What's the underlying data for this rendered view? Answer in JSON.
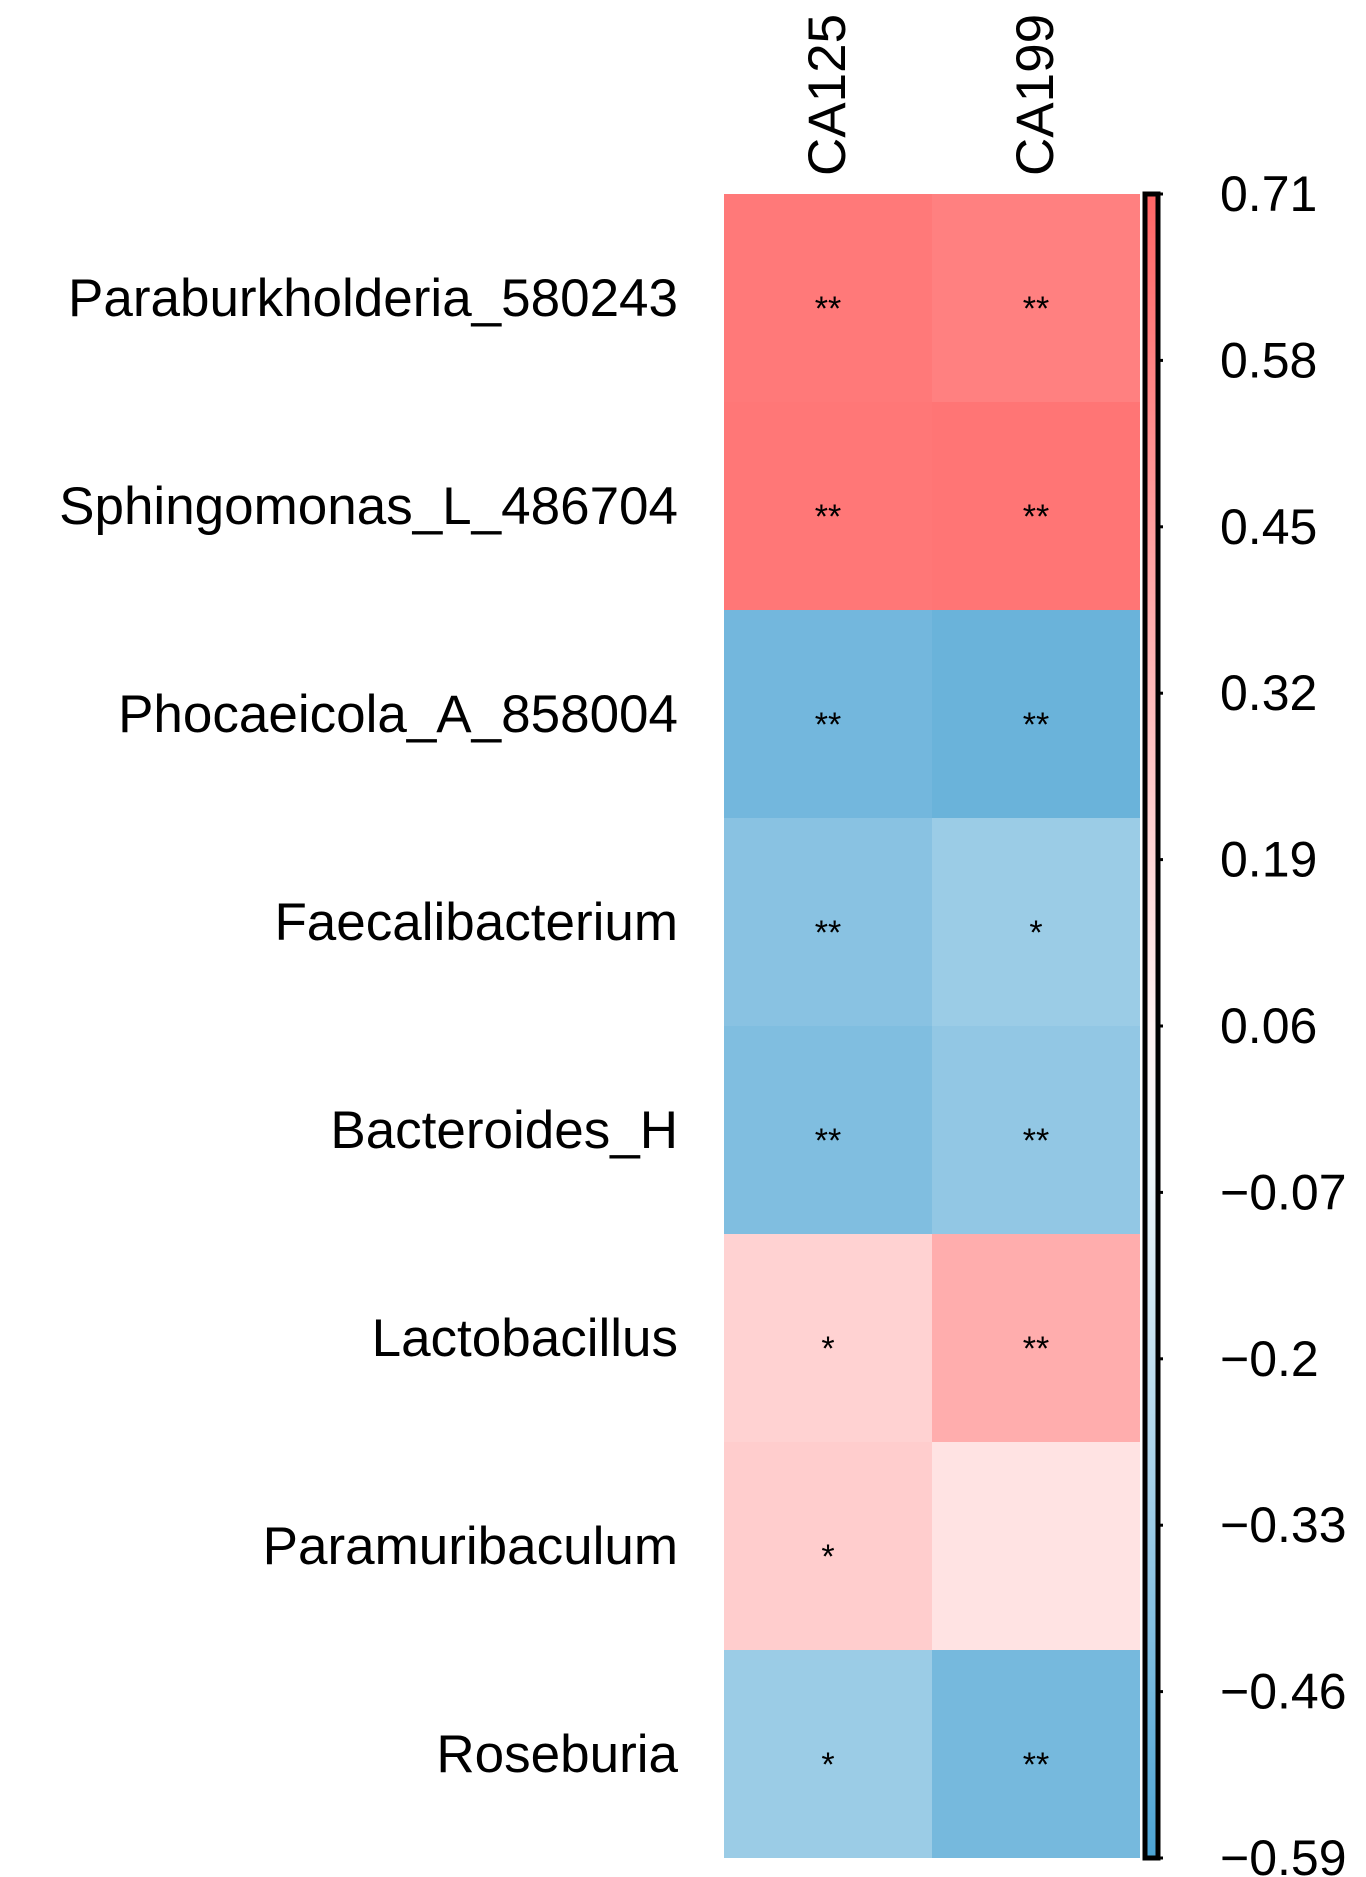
{
  "chart_data": {
    "type": "heatmap",
    "title": "",
    "columns": [
      "CA125",
      "CA199"
    ],
    "rows": [
      "Paraburkholderia_580243",
      "Sphingomonas_L_486704",
      "Phocaeicola_A_858004",
      "Faecalibacterium",
      "Bacteroides_H",
      "Lactobacillus",
      "Paramuribaculum",
      "Roseburia"
    ],
    "values": [
      [
        0.62,
        0.59
      ],
      [
        0.63,
        0.64
      ],
      [
        -0.46,
        -0.49
      ],
      [
        -0.39,
        -0.33
      ],
      [
        -0.42,
        -0.36
      ],
      [
        0.21,
        0.38
      ],
      [
        0.23,
        0.13
      ],
      [
        -0.33,
        -0.45
      ]
    ],
    "significance": [
      [
        "**",
        "**"
      ],
      [
        "**",
        "**"
      ],
      [
        "**",
        "**"
      ],
      [
        "**",
        "*"
      ],
      [
        "**",
        "**"
      ],
      [
        "*",
        "**"
      ],
      [
        "*",
        ""
      ],
      [
        "*",
        "**"
      ]
    ],
    "colorbar": {
      "ticks": [
        "0.71",
        "0.58",
        "0.45",
        "0.32",
        "0.19",
        "0.06",
        "−0.07",
        "−0.2",
        "−0.33",
        "−0.46",
        "−0.59"
      ],
      "min": -0.59,
      "max": 0.71,
      "colors": {
        "positive_max": "#ff6666",
        "negative_max": "#4ca3d3",
        "neutral": "#ffffff"
      }
    }
  }
}
